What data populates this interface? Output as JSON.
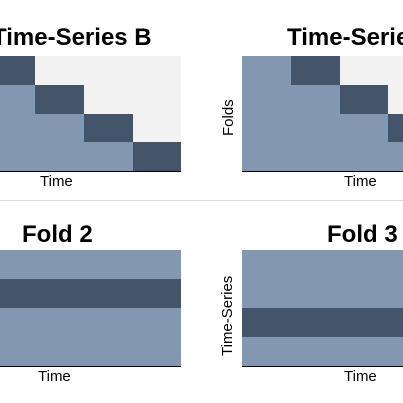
{
  "panels": {
    "top_left": {
      "title": "Time-Series B",
      "xlabel": "Time",
      "ylabel": ""
    },
    "top_right": {
      "title": "Time-Series",
      "xlabel": "Time",
      "ylabel": "Folds"
    },
    "bottom_left": {
      "title": "Fold 2",
      "xlabel": "Time",
      "ylabel": ""
    },
    "bottom_right": {
      "title": "Fold 3",
      "xlabel": "Time",
      "ylabel": "Time-Series"
    }
  },
  "colors": {
    "light_block": "#8497b0",
    "dark_block": "#44546a",
    "background_fill": "#f2f2f2"
  }
}
